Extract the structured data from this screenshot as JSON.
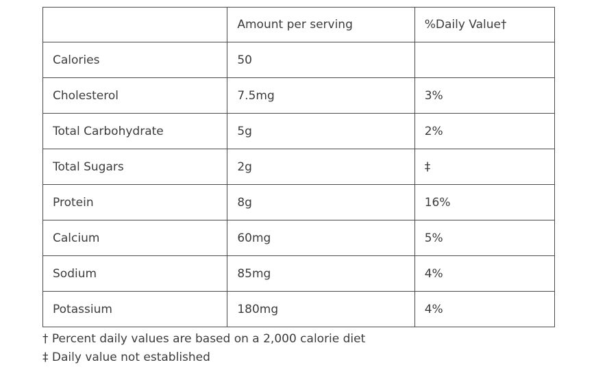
{
  "colors": {
    "text": "#3b3b3b",
    "border": "#4a4a4a",
    "background": "#ffffff"
  },
  "table": {
    "headers": [
      "",
      "Amount per serving",
      "%Daily Value†"
    ],
    "rows": [
      {
        "label": "Calories",
        "amount": "50",
        "dv": ""
      },
      {
        "label": "Cholesterol",
        "amount": "7.5mg",
        "dv": "3%"
      },
      {
        "label": "Total Carbohydrate",
        "amount": "5g",
        "dv": "2%"
      },
      {
        "label": "Total Sugars",
        "amount": "2g",
        "dv": "‡"
      },
      {
        "label": "Protein",
        "amount": "8g",
        "dv": "16%"
      },
      {
        "label": "Calcium",
        "amount": "60mg",
        "dv": "5%"
      },
      {
        "label": "Sodium",
        "amount": "85mg",
        "dv": "4%"
      },
      {
        "label": "Potassium",
        "amount": "180mg",
        "dv": "4%"
      }
    ]
  },
  "footnotes": [
    "† Percent daily values are based on a 2,000 calorie diet",
    "‡ Daily value not established"
  ]
}
